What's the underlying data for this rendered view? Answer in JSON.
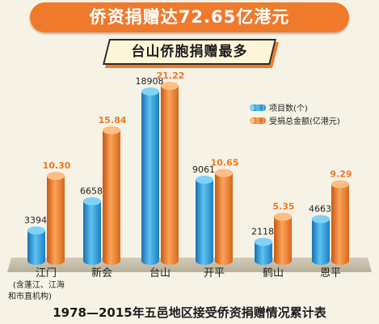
{
  "header": {
    "title": "侨资捐赠达72.65亿港元",
    "subtitle": "台山侨胞捐赠最多"
  },
  "footnote": "1978—2015年五邑地区接受侨资捐赠情况累计表",
  "colors": {
    "title_bg": "#ef7a2c",
    "blue_bar": "#2a97d6",
    "orange_bar": "#ee7a22",
    "background": "#f6f2e6"
  },
  "chart_data": {
    "type": "bar",
    "categories": [
      "江门",
      "新会",
      "台山",
      "开平",
      "鹤山",
      "恩平"
    ],
    "category_notes": [
      "(含蓬江、江海",
      "和市直机构)"
    ],
    "series": [
      {
        "name": "项目数(个)",
        "values": [
          3394,
          6658,
          18908,
          9061,
          2118,
          4663
        ],
        "labels": [
          "3394",
          "6658",
          "18908",
          "9061",
          "2118",
          "4663"
        ],
        "color": "#2a97d6"
      },
      {
        "name": "受捐总金额(亿港元)",
        "values": [
          10.3,
          15.84,
          21.22,
          10.65,
          5.35,
          9.29
        ],
        "labels": [
          "10.30",
          "15.84",
          "21.22",
          "10.65",
          "5.35",
          "9.29"
        ],
        "color": "#ee7a22"
      }
    ],
    "legend_position": "right",
    "grid": false
  }
}
